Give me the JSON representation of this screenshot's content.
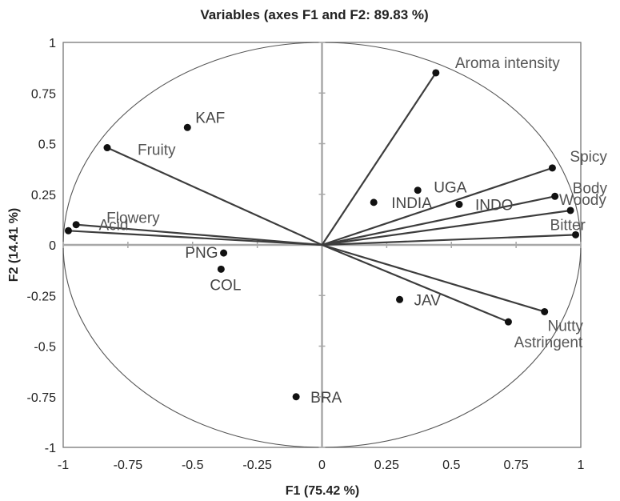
{
  "chart_data": {
    "type": "scatter",
    "title": "Variables (axes F1 and F2: 89.83 %)",
    "xlabel": "F1 (75.42 %)",
    "ylabel": "F2 (14.41 %)",
    "xlim": [
      -1,
      1
    ],
    "ylim": [
      -1,
      1
    ],
    "x_ticks": [
      "-1",
      "-0.75",
      "-0.5",
      "-0.25",
      "0",
      "0.25",
      "0.5",
      "0.75",
      "1"
    ],
    "y_ticks": [
      "1",
      "0.75",
      "0.5",
      "0.25",
      "0",
      "-0.25",
      "-0.5",
      "-0.75",
      "-1"
    ],
    "correlation_circle": true,
    "variables": [
      {
        "name": "Aroma intensity",
        "x": 0.44,
        "y": 0.85
      },
      {
        "name": "Spicy",
        "x": 0.89,
        "y": 0.38
      },
      {
        "name": "Body",
        "x": 0.9,
        "y": 0.24
      },
      {
        "name": "Woody",
        "x": 0.96,
        "y": 0.17
      },
      {
        "name": "Bitter",
        "x": 0.98,
        "y": 0.05
      },
      {
        "name": "Nutty",
        "x": 0.86,
        "y": -0.33
      },
      {
        "name": "Astringent",
        "x": 0.72,
        "y": -0.38
      },
      {
        "name": "Fruity",
        "x": -0.83,
        "y": 0.48
      },
      {
        "name": "Flowery",
        "x": -0.95,
        "y": 0.1
      },
      {
        "name": "Acid",
        "x": -0.98,
        "y": 0.07
      }
    ],
    "observations": [
      {
        "name": "KAF",
        "x": -0.52,
        "y": 0.58
      },
      {
        "name": "INDIA",
        "x": 0.2,
        "y": 0.21
      },
      {
        "name": "UGA",
        "x": 0.37,
        "y": 0.27
      },
      {
        "name": "INDO",
        "x": 0.53,
        "y": 0.2
      },
      {
        "name": "PNG",
        "x": -0.38,
        "y": -0.04
      },
      {
        "name": "COL",
        "x": -0.39,
        "y": -0.12
      },
      {
        "name": "JAV",
        "x": 0.3,
        "y": -0.27
      },
      {
        "name": "BRA",
        "x": -0.1,
        "y": -0.75
      }
    ]
  }
}
